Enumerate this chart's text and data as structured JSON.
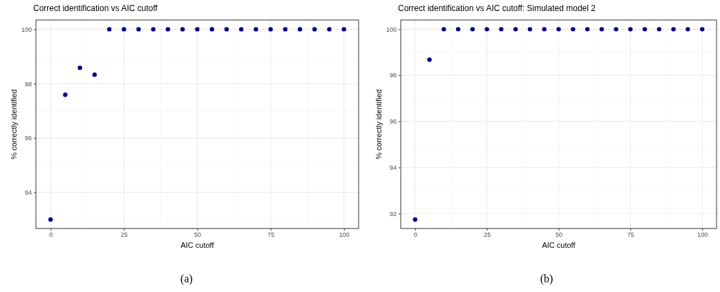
{
  "chart_data": [
    {
      "type": "scatter",
      "title": "Correct identification vs AIC cutoff",
      "xlabel": "AIC cutoff",
      "ylabel": "% correctly identified",
      "annotations": [
        "(a)"
      ],
      "series": [
        {
          "type": "scatter",
          "color": "#00008b",
          "x": [
            0,
            5,
            10,
            15,
            20,
            25,
            30,
            35,
            40,
            45,
            50,
            55,
            60,
            65,
            70,
            75,
            80,
            85,
            90,
            95,
            100
          ],
          "values": [
            93.0,
            97.59,
            98.58,
            98.33,
            100,
            100,
            100,
            100,
            100,
            100,
            100,
            100,
            100,
            100,
            100,
            100,
            100,
            100,
            100,
            100,
            100
          ]
        }
      ],
      "xlim": [
        -5,
        105
      ],
      "xticks": [
        0,
        25,
        50,
        75,
        100
      ],
      "ylim": [
        92.67,
        100.34
      ],
      "yticks": [
        94,
        96,
        98,
        100
      ],
      "grid": true,
      "marker": "circle"
    },
    {
      "type": "scatter",
      "title": "Correct identification vs AIC cutoff: Simulated model 2",
      "xlabel": "AIC cutoff",
      "ylabel": "% correctly identified",
      "annotations": [
        "(b)"
      ],
      "series": [
        {
          "type": "scatter",
          "color": "#00008b",
          "x": [
            0,
            5,
            10,
            15,
            20,
            25,
            30,
            35,
            40,
            45,
            50,
            55,
            60,
            65,
            70,
            75,
            80,
            85,
            90,
            95,
            100
          ],
          "values": [
            91.74,
            98.68,
            100,
            100,
            100,
            100,
            100,
            100,
            100,
            100,
            100,
            100,
            100,
            100,
            100,
            100,
            100,
            100,
            100,
            100,
            100
          ]
        }
      ],
      "xlim": [
        -5,
        105
      ],
      "xticks": [
        0,
        25,
        50,
        75,
        100
      ],
      "ylim": [
        91.35,
        100.4
      ],
      "yticks": [
        92,
        94,
        96,
        98,
        100
      ],
      "grid": true,
      "marker": "circle"
    }
  ]
}
